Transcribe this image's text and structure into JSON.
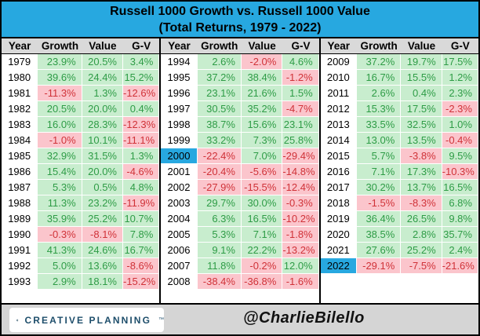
{
  "title": {
    "line1": "Russell 1000 Growth vs. Russell 1000 Value",
    "line2": "(Total Returns, 1979 - 2022)"
  },
  "chart_data": {
    "type": "table",
    "title": "Russell 1000 Growth vs. Russell 1000 Value (Total Returns, 1979 - 2022)",
    "columns": [
      "Year",
      "Growth",
      "Value",
      "G-V"
    ],
    "highlighted_years": [
      "2000",
      "2022"
    ],
    "groups": [
      {
        "rows": [
          [
            "1979",
            "23.9%",
            "20.5%",
            "3.4%"
          ],
          [
            "1980",
            "39.6%",
            "24.4%",
            "15.2%"
          ],
          [
            "1981",
            "-11.3%",
            "1.3%",
            "-12.6%"
          ],
          [
            "1982",
            "20.5%",
            "20.0%",
            "0.4%"
          ],
          [
            "1983",
            "16.0%",
            "28.3%",
            "-12.3%"
          ],
          [
            "1984",
            "-1.0%",
            "10.1%",
            "-11.1%"
          ],
          [
            "1985",
            "32.9%",
            "31.5%",
            "1.3%"
          ],
          [
            "1986",
            "15.4%",
            "20.0%",
            "-4.6%"
          ],
          [
            "1987",
            "5.3%",
            "0.5%",
            "4.8%"
          ],
          [
            "1988",
            "11.3%",
            "23.2%",
            "-11.9%"
          ],
          [
            "1989",
            "35.9%",
            "25.2%",
            "10.7%"
          ],
          [
            "1990",
            "-0.3%",
            "-8.1%",
            "7.8%"
          ],
          [
            "1991",
            "41.3%",
            "24.6%",
            "16.7%"
          ],
          [
            "1992",
            "5.0%",
            "13.6%",
            "-8.6%"
          ],
          [
            "1993",
            "2.9%",
            "18.1%",
            "-15.2%"
          ]
        ]
      },
      {
        "rows": [
          [
            "1994",
            "2.6%",
            "-2.0%",
            "4.6%"
          ],
          [
            "1995",
            "37.2%",
            "38.4%",
            "-1.2%"
          ],
          [
            "1996",
            "23.1%",
            "21.6%",
            "1.5%"
          ],
          [
            "1997",
            "30.5%",
            "35.2%",
            "-4.7%"
          ],
          [
            "1998",
            "38.7%",
            "15.6%",
            "23.1%"
          ],
          [
            "1999",
            "33.2%",
            "7.3%",
            "25.8%"
          ],
          [
            "2000",
            "-22.4%",
            "7.0%",
            "-29.4%"
          ],
          [
            "2001",
            "-20.4%",
            "-5.6%",
            "-14.8%"
          ],
          [
            "2002",
            "-27.9%",
            "-15.5%",
            "-12.4%"
          ],
          [
            "2003",
            "29.7%",
            "30.0%",
            "-0.3%"
          ],
          [
            "2004",
            "6.3%",
            "16.5%",
            "-10.2%"
          ],
          [
            "2005",
            "5.3%",
            "7.1%",
            "-1.8%"
          ],
          [
            "2006",
            "9.1%",
            "22.2%",
            "-13.2%"
          ],
          [
            "2007",
            "11.8%",
            "-0.2%",
            "12.0%"
          ],
          [
            "2008",
            "-38.4%",
            "-36.8%",
            "-1.6%"
          ]
        ]
      },
      {
        "rows": [
          [
            "2009",
            "37.2%",
            "19.7%",
            "17.5%"
          ],
          [
            "2010",
            "16.7%",
            "15.5%",
            "1.2%"
          ],
          [
            "2011",
            "2.6%",
            "0.4%",
            "2.3%"
          ],
          [
            "2012",
            "15.3%",
            "17.5%",
            "-2.3%"
          ],
          [
            "2013",
            "33.5%",
            "32.5%",
            "1.0%"
          ],
          [
            "2014",
            "13.0%",
            "13.5%",
            "-0.4%"
          ],
          [
            "2015",
            "5.7%",
            "-3.8%",
            "9.5%"
          ],
          [
            "2016",
            "7.1%",
            "17.3%",
            "-10.3%"
          ],
          [
            "2017",
            "30.2%",
            "13.7%",
            "16.5%"
          ],
          [
            "2018",
            "-1.5%",
            "-8.3%",
            "6.8%"
          ],
          [
            "2019",
            "36.4%",
            "26.5%",
            "9.8%"
          ],
          [
            "2020",
            "38.5%",
            "2.8%",
            "35.7%"
          ],
          [
            "2021",
            "27.6%",
            "25.2%",
            "2.4%"
          ],
          [
            "2022",
            "-29.1%",
            "-7.5%",
            "-21.6%"
          ]
        ]
      }
    ]
  },
  "footer": {
    "brand": "CREATIVE PLANNING",
    "trademark": "™",
    "handle": "@CharlieBilello"
  },
  "colors": {
    "accent_blue": "#27A8E0",
    "header_bg": "#D9D9D9",
    "positive_bg": "#C8EDCE",
    "positive_text": "#2E9C46",
    "negative_bg": "#FBC5CC",
    "negative_text": "#D03238",
    "footer_bg": "#D5D5D5",
    "brand_navy": "#1E4E6B",
    "brand_gold": "#C2A064"
  }
}
